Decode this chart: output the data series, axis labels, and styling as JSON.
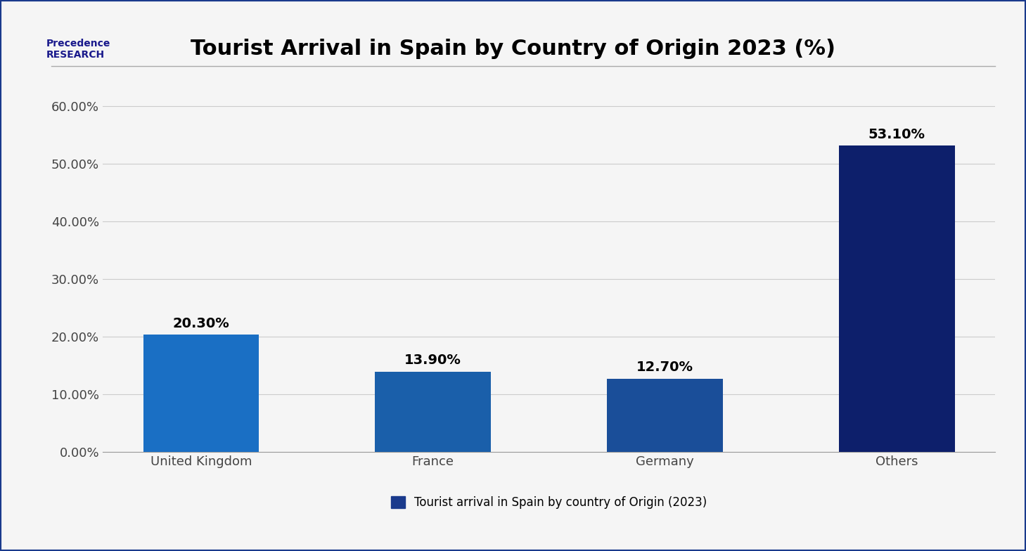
{
  "title": "Tourist Arrival in Spain by Country of Origin 2023 (%)",
  "categories": [
    "United Kingdom",
    "France",
    "Germany",
    "Others"
  ],
  "values": [
    20.3,
    13.9,
    12.7,
    53.1
  ],
  "bar_colors": [
    "#1a6fc4",
    "#1a5faa",
    "#1a4e99",
    "#0d1f6b"
  ],
  "ylim": [
    0,
    65
  ],
  "yticks": [
    0,
    10,
    20,
    30,
    40,
    50,
    60
  ],
  "ytick_labels": [
    "0.00%",
    "10.00%",
    "20.00%",
    "30.00%",
    "40.00%",
    "50.00%",
    "60.00%"
  ],
  "legend_label": "Tourist arrival in Spain by country of Origin (2023)",
  "legend_color": "#1a3a8c",
  "background_color": "#f5f5f5",
  "plot_bg_color": "#f5f5f5",
  "grid_color": "#cccccc",
  "title_fontsize": 22,
  "tick_fontsize": 13,
  "label_fontsize": 13,
  "annotation_fontsize": 14,
  "bar_width": 0.5
}
